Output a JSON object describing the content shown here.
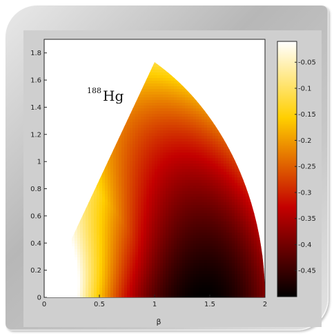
{
  "chart_data": {
    "type": "heatmap",
    "title": "",
    "annotation": {
      "mass": "188",
      "element": "Hg"
    },
    "xlabel": "β",
    "ylabel": "",
    "xlim": [
      0,
      2
    ],
    "ylim": [
      0,
      1.9
    ],
    "x_ticks": [
      "0",
      "0.5",
      "1",
      "1.5",
      "2"
    ],
    "y_ticks": [
      "0",
      "0.2",
      "0.4",
      "0.6",
      "0.8",
      "1",
      "1.2",
      "1.4",
      "1.6",
      "1.8"
    ],
    "grid": false,
    "domain": "sector: beta from 0 to 2, gamma from 0 to 60 degrees (x = beta·cos γ, y = beta·sin γ)",
    "colormap": "hot",
    "colorbar": {
      "range": [
        -0.5,
        -0.01
      ],
      "ticks": [
        "-0.05",
        "-0.1",
        "-0.15",
        "-0.2",
        "-0.25",
        "-0.3",
        "-0.35",
        "-0.4",
        "-0.45"
      ]
    },
    "surface_features": {
      "minimum_value": -0.5,
      "minimum_location_beta_gamma": [
        1.45,
        0
      ],
      "maximum_value": -0.01,
      "maximum_location_beta_gamma": [
        0.1,
        0
      ]
    }
  },
  "colors": {
    "background": "#ffffff",
    "frame": "#c6c6c6",
    "plot_panel": "#ffffff"
  }
}
